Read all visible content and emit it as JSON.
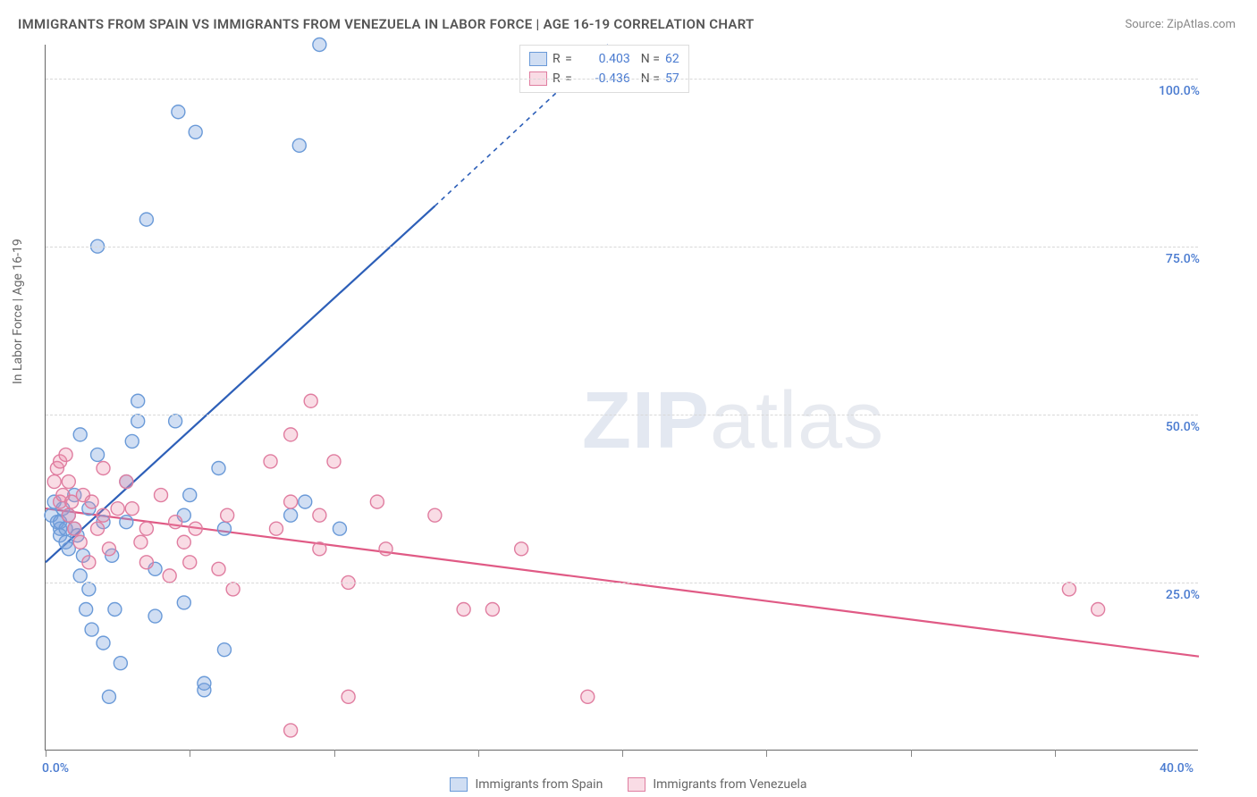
{
  "title": "IMMIGRANTS FROM SPAIN VS IMMIGRANTS FROM VENEZUELA IN LABOR FORCE | AGE 16-19 CORRELATION CHART",
  "source_label": "Source: ZipAtlas.com",
  "ylabel": "In Labor Force | Age 16-19",
  "watermark": {
    "bold": "ZIP",
    "rest": "atlas"
  },
  "chart": {
    "type": "scatter-regression",
    "xlim": [
      0,
      40
    ],
    "ylim": [
      0,
      105
    ],
    "xtick_positions": [
      0,
      5,
      10,
      15,
      20,
      25,
      30,
      35
    ],
    "xtick_labels": {
      "0": "0.0%",
      "40": "40.0%"
    },
    "ytick_positions": [
      25,
      50,
      75,
      100
    ],
    "ytick_labels": [
      "25.0%",
      "50.0%",
      "75.0%",
      "100.0%"
    ],
    "grid_color": "#d8d8d8",
    "background_color": "#ffffff",
    "axis_color": "#666666"
  },
  "series": [
    {
      "name": "Immigrants from Spain",
      "color_fill": "rgba(120,160,220,0.35)",
      "color_stroke": "#6a9ad8",
      "line_color": "#2d5fb8",
      "R": "0.403",
      "N": "62",
      "regression": {
        "x1": 0,
        "y1": 28,
        "x2_solid": 13.5,
        "y2_solid": 81,
        "x2_dash": 19.5,
        "y2_dash": 105
      },
      "points": [
        [
          0.2,
          35
        ],
        [
          0.3,
          37
        ],
        [
          0.4,
          34
        ],
        [
          0.5,
          33
        ],
        [
          0.5,
          32
        ],
        [
          0.5,
          34
        ],
        [
          0.6,
          36
        ],
        [
          0.7,
          31
        ],
        [
          0.7,
          33
        ],
        [
          0.8,
          35
        ],
        [
          0.8,
          30
        ],
        [
          1.0,
          38
        ],
        [
          1.0,
          33
        ],
        [
          1.1,
          32
        ],
        [
          1.2,
          47
        ],
        [
          1.2,
          26
        ],
        [
          1.3,
          29
        ],
        [
          1.4,
          21
        ],
        [
          1.5,
          24
        ],
        [
          1.5,
          36
        ],
        [
          1.6,
          18
        ],
        [
          1.8,
          44
        ],
        [
          1.8,
          75
        ],
        [
          2.0,
          16
        ],
        [
          2.0,
          34
        ],
        [
          2.2,
          8
        ],
        [
          2.3,
          29
        ],
        [
          2.4,
          21
        ],
        [
          2.6,
          13
        ],
        [
          2.8,
          40
        ],
        [
          2.8,
          34
        ],
        [
          3.0,
          46
        ],
        [
          3.2,
          52
        ],
        [
          3.2,
          49
        ],
        [
          3.5,
          79
        ],
        [
          3.8,
          27
        ],
        [
          3.8,
          20
        ],
        [
          4.5,
          49
        ],
        [
          4.6,
          95
        ],
        [
          4.8,
          35
        ],
        [
          4.8,
          22
        ],
        [
          5.0,
          38
        ],
        [
          5.2,
          92
        ],
        [
          5.5,
          9
        ],
        [
          5.5,
          10
        ],
        [
          6.0,
          42
        ],
        [
          6.2,
          15
        ],
        [
          6.2,
          33
        ],
        [
          8.8,
          90
        ],
        [
          8.5,
          35
        ],
        [
          9.0,
          37
        ],
        [
          9.5,
          105
        ],
        [
          10.2,
          33
        ]
      ]
    },
    {
      "name": "Immigrants from Venezuela",
      "color_fill": "rgba(235,140,170,0.30)",
      "color_stroke": "#e07da0",
      "line_color": "#e05a85",
      "R": "-0.436",
      "N": "57",
      "regression": {
        "x1": 0,
        "y1": 36,
        "x2_solid": 40,
        "y2_solid": 14,
        "x2_dash": 40,
        "y2_dash": 14
      },
      "points": [
        [
          0.3,
          40
        ],
        [
          0.4,
          42
        ],
        [
          0.5,
          43
        ],
        [
          0.5,
          37
        ],
        [
          0.6,
          38
        ],
        [
          0.7,
          44
        ],
        [
          0.8,
          40
        ],
        [
          0.8,
          35
        ],
        [
          0.9,
          37
        ],
        [
          1.0,
          33
        ],
        [
          1.2,
          31
        ],
        [
          1.3,
          38
        ],
        [
          1.5,
          28
        ],
        [
          1.6,
          37
        ],
        [
          1.8,
          33
        ],
        [
          2.0,
          42
        ],
        [
          2.0,
          35
        ],
        [
          2.2,
          30
        ],
        [
          2.5,
          36
        ],
        [
          2.8,
          40
        ],
        [
          3.0,
          36
        ],
        [
          3.3,
          31
        ],
        [
          3.5,
          28
        ],
        [
          3.5,
          33
        ],
        [
          4.0,
          38
        ],
        [
          4.3,
          26
        ],
        [
          4.5,
          34
        ],
        [
          4.8,
          31
        ],
        [
          5.0,
          28
        ],
        [
          5.2,
          33
        ],
        [
          6.0,
          27
        ],
        [
          6.3,
          35
        ],
        [
          6.5,
          24
        ],
        [
          7.8,
          43
        ],
        [
          8.0,
          33
        ],
        [
          8.5,
          47
        ],
        [
          8.5,
          37
        ],
        [
          8.5,
          3
        ],
        [
          9.2,
          52
        ],
        [
          9.5,
          30
        ],
        [
          9.5,
          35
        ],
        [
          10.0,
          43
        ],
        [
          10.5,
          25
        ],
        [
          10.5,
          8
        ],
        [
          11.5,
          37
        ],
        [
          11.8,
          30
        ],
        [
          13.5,
          35
        ],
        [
          14.5,
          21
        ],
        [
          15.5,
          21
        ],
        [
          16.5,
          30
        ],
        [
          18.8,
          8
        ],
        [
          35.5,
          24
        ],
        [
          36.5,
          21
        ]
      ]
    }
  ],
  "legend": {
    "top_rows": [
      {
        "swatch_fill": "rgba(120,160,220,0.35)",
        "swatch_stroke": "#6a9ad8",
        "R": "0.403",
        "N": "62"
      },
      {
        "swatch_fill": "rgba(235,140,170,0.30)",
        "swatch_stroke": "#e07da0",
        "R": "-0.436",
        "N": "57"
      }
    ],
    "bottom": [
      {
        "swatch_fill": "rgba(120,160,220,0.35)",
        "swatch_stroke": "#6a9ad8",
        "label": "Immigrants from Spain"
      },
      {
        "swatch_fill": "rgba(235,140,170,0.30)",
        "swatch_stroke": "#e07da0",
        "label": "Immigrants from Venezuela"
      }
    ]
  }
}
